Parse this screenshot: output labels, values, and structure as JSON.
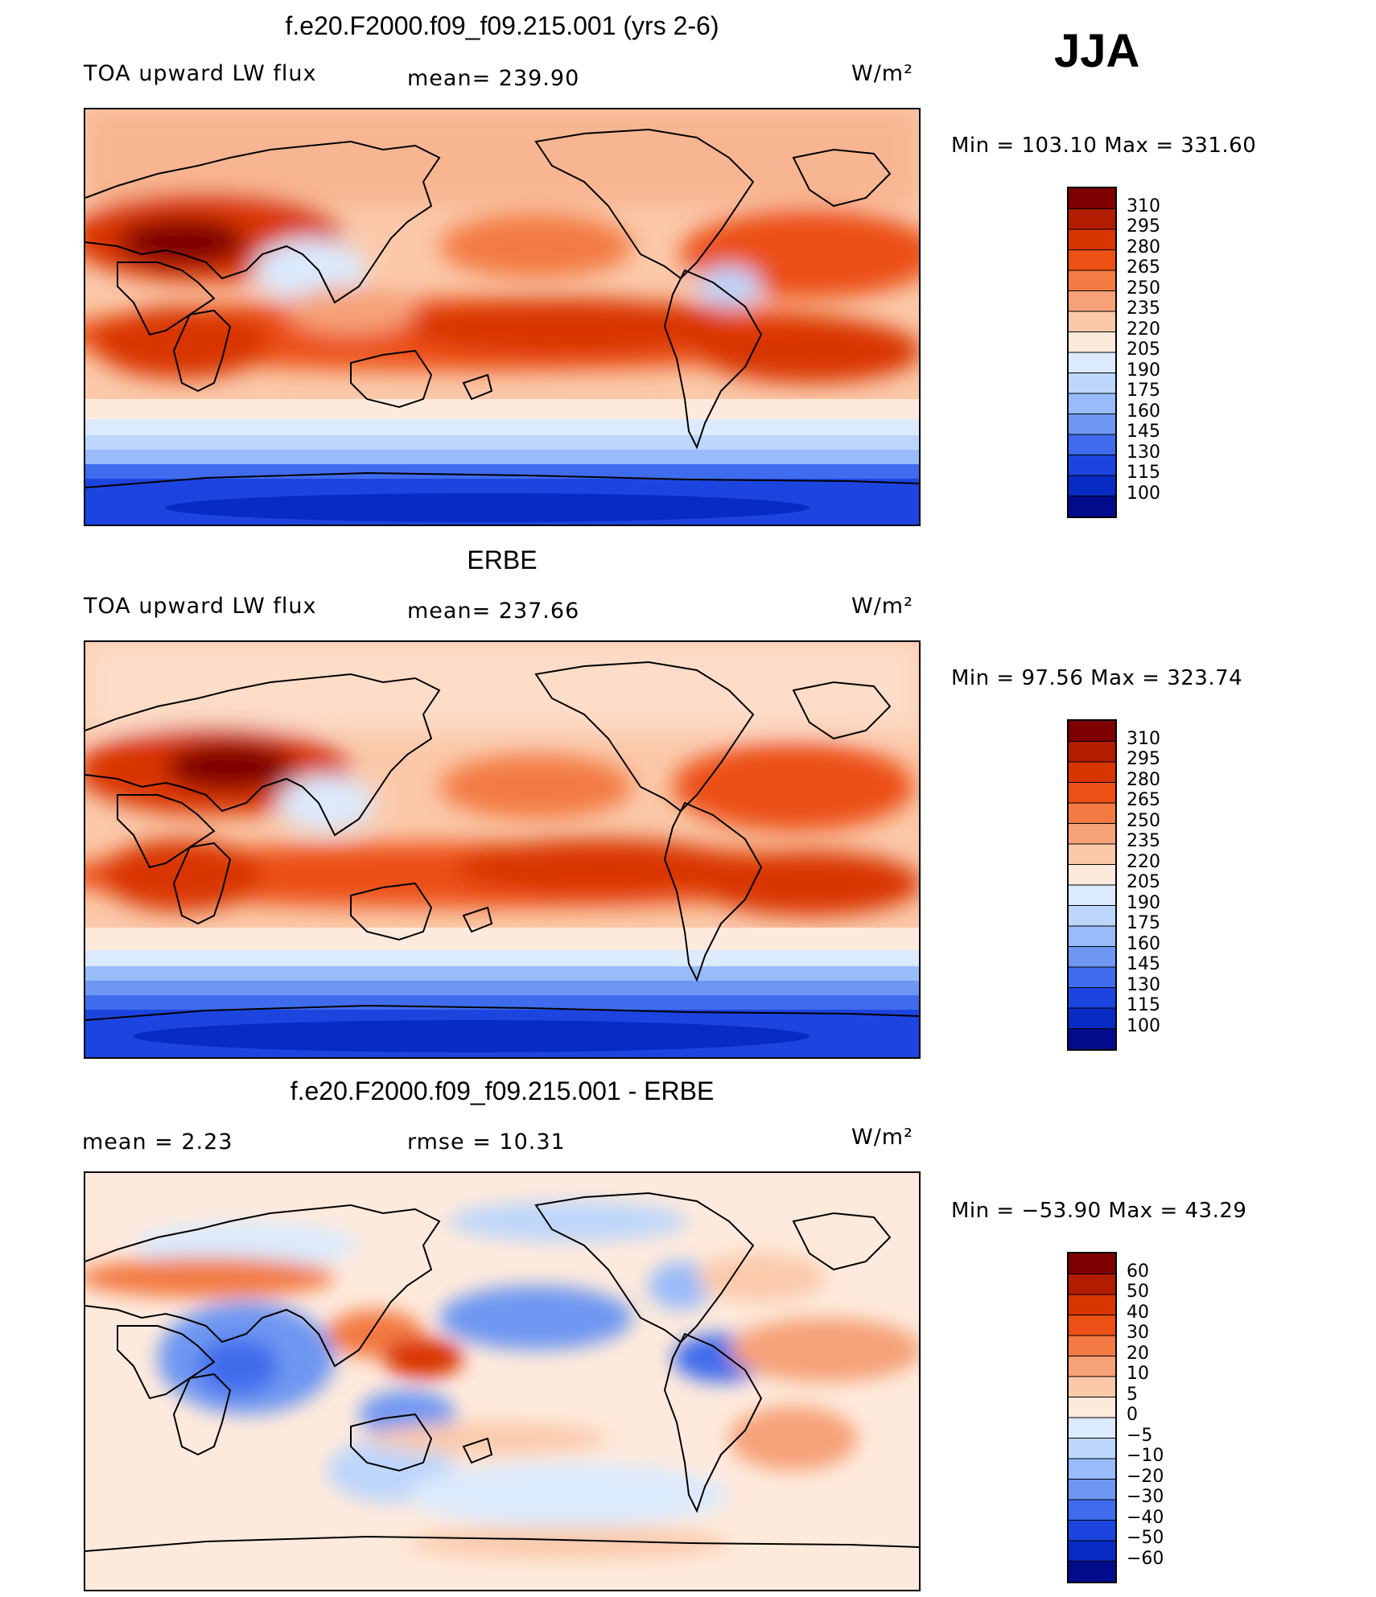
{
  "season": "JJA",
  "units_label": "W/m²",
  "panels": [
    {
      "title": "f.e20.F2000.f09_f09.215.001 (yrs 2-6)",
      "left_label": "TOA upward LW flux",
      "center_label": "mean=  239.90",
      "minmax": "Min  =  103.10  Max  =  331.60",
      "colorbar": {
        "levels": [
          "310",
          "295",
          "280",
          "265",
          "250",
          "235",
          "220",
          "205",
          "190",
          "175",
          "160",
          "145",
          "130",
          "115",
          "100"
        ],
        "colors": [
          "#7f0000",
          "#b21c00",
          "#d93500",
          "#ec5014",
          "#f37a43",
          "#f6a178",
          "#fbc9aa",
          "#feeadc",
          "#dbeafd",
          "#bdd6fc",
          "#98bbf9",
          "#6e97f2",
          "#3f6cec",
          "#1c45e0",
          "#082bc4",
          "#000c8c"
        ]
      }
    },
    {
      "title": "ERBE",
      "left_label": "TOA upward LW flux",
      "center_label": "mean=  237.66",
      "minmax": "Min  =    97.56  Max  =  323.74",
      "colorbar": {
        "levels": [
          "310",
          "295",
          "280",
          "265",
          "250",
          "235",
          "220",
          "205",
          "190",
          "175",
          "160",
          "145",
          "130",
          "115",
          "100"
        ],
        "colors": [
          "#7f0000",
          "#b21c00",
          "#d93500",
          "#ec5014",
          "#f37a43",
          "#f6a178",
          "#fbc9aa",
          "#feeadc",
          "#dbeafd",
          "#bdd6fc",
          "#98bbf9",
          "#6e97f2",
          "#3f6cec",
          "#1c45e0",
          "#082bc4",
          "#000c8c"
        ]
      }
    },
    {
      "title": "f.e20.F2000.f09_f09.215.001 - ERBE",
      "left_label": "mean  =      2.23",
      "center_label": "rmse  =     10.31",
      "minmax": "Min  =  −53.90  Max  =    43.29",
      "colorbar": {
        "levels": [
          "60",
          "50",
          "40",
          "30",
          "20",
          "10",
          "5",
          "0",
          "−5",
          "−10",
          "−20",
          "−30",
          "−40",
          "−50",
          "−60"
        ],
        "colors": [
          "#7f0000",
          "#b21c00",
          "#d93500",
          "#ec5014",
          "#f37a43",
          "#f6a178",
          "#fbc9aa",
          "#feeadc",
          "#dbeafd",
          "#bdd6fc",
          "#98bbf9",
          "#6e97f2",
          "#3f6cec",
          "#1c45e0",
          "#082bc4",
          "#000c8c"
        ]
      }
    }
  ]
}
